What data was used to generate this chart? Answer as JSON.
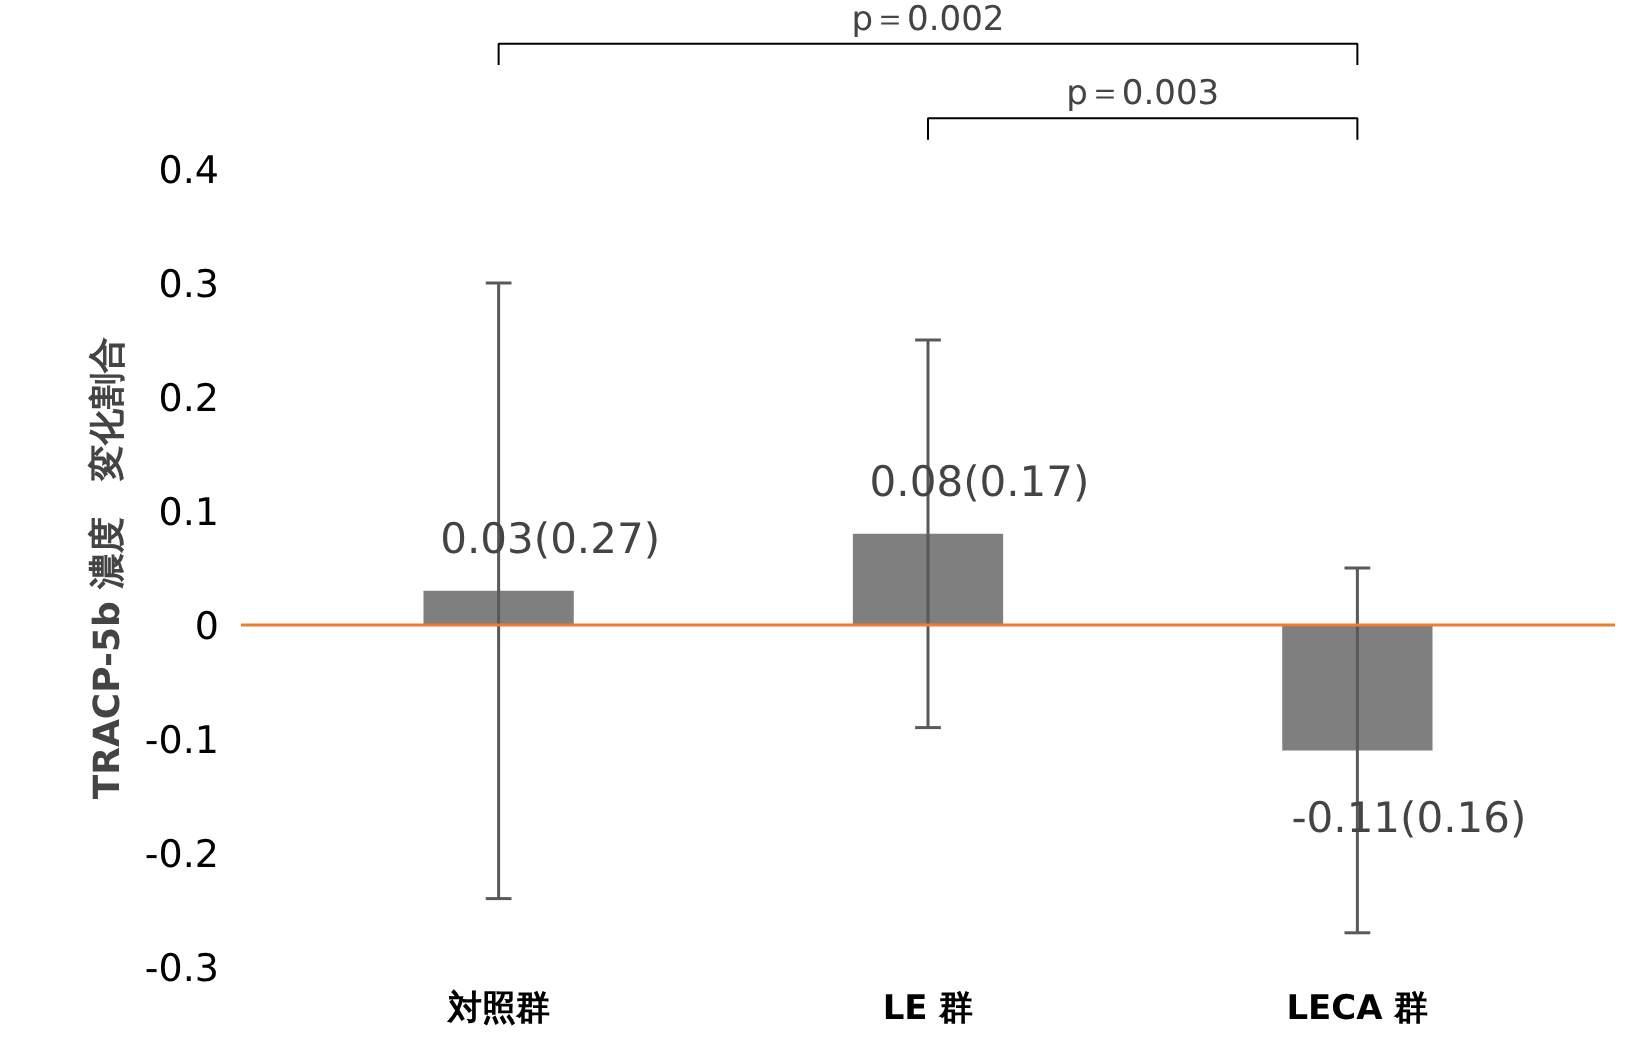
{
  "chart_data": {
    "type": "bar",
    "ylabel": "TRACP-5b 濃度　変化割合",
    "categories": [
      "対照群",
      "LE 群",
      "LECA 群"
    ],
    "values": [
      0.03,
      0.08,
      -0.11
    ],
    "color": "#7f7f7f",
    "errors": [
      0.27,
      0.17,
      0.16
    ],
    "value_labels": [
      "0.03(0.27)",
      "0.08(0.17)",
      "-0.11(0.16)"
    ],
    "ylim": [
      -0.3,
      0.4
    ],
    "yticks": [
      -0.3,
      -0.2,
      -0.1,
      0,
      0.1,
      0.2,
      0.3,
      0.4
    ],
    "grid": false,
    "ref_lines": [
      {
        "axis": "y",
        "value": 0,
        "color": "#ed7d31"
      }
    ],
    "annotations": [
      "p＝0.002",
      "p＝0.003"
    ]
  }
}
